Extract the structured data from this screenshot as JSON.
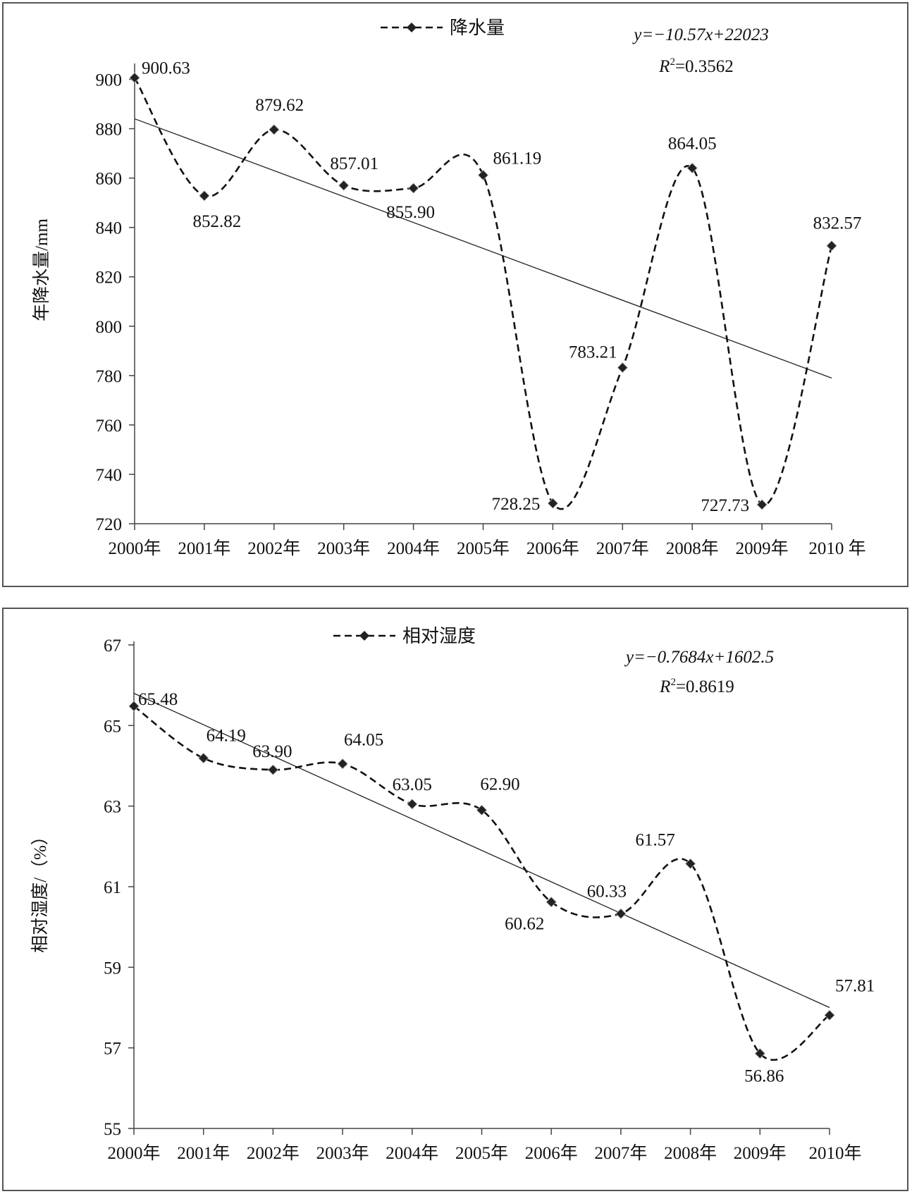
{
  "chart_data": [
    {
      "type": "line",
      "legend": "降水量",
      "ylabel": "年降水量/mm",
      "xlabel": "",
      "categories": [
        "2000年",
        "2001年",
        "2002年",
        "2003年",
        "2004年",
        "2005年",
        "2006年",
        "2007年",
        "2008年",
        "2009年",
        "2010 年"
      ],
      "ylim": [
        720,
        900
      ],
      "ymax_plot": 905,
      "yticks": [
        720,
        740,
        760,
        780,
        800,
        820,
        840,
        860,
        880,
        900
      ],
      "series": [
        {
          "name": "降水量",
          "values": [
            900.63,
            852.82,
            879.62,
            857.01,
            855.9,
            861.19,
            728.25,
            783.21,
            864.05,
            727.73,
            832.57
          ],
          "labels": [
            "900.63",
            "852.82",
            "879.62",
            "857.01",
            "855.90",
            "861.19",
            "728.25",
            "783.21",
            "864.05",
            "727.73",
            "832.57"
          ],
          "style": "dashed",
          "color": "#111111"
        }
      ],
      "trendline": {
        "x_start": 2000,
        "x_end": 2010,
        "slope": -10.57,
        "intercept": 22023,
        "y_start": 884,
        "y_end": 779
      },
      "equation": "y=−10.57x+22023",
      "r2_label": "R",
      "r2_value": "=0.3562",
      "legend_position": "top-center",
      "grid": false
    },
    {
      "type": "line",
      "legend": "相对湿度",
      "ylabel": "相对湿度/（%）",
      "xlabel": "",
      "categories": [
        "2000年",
        "2001年",
        "2002年",
        "2003年",
        "2004年",
        "2005年",
        "2006年",
        "2007年",
        "2008年",
        "2009年",
        "2010年"
      ],
      "ylim": [
        55,
        67
      ],
      "yticks": [
        55,
        57,
        59,
        61,
        63,
        65,
        67
      ],
      "series": [
        {
          "name": "相对湿度",
          "values": [
            65.48,
            64.19,
            63.9,
            64.05,
            63.05,
            62.9,
            60.62,
            60.33,
            61.57,
            56.86,
            57.81
          ],
          "labels": [
            "65.48",
            "64.19",
            "63.90",
            "64.05",
            "63.05",
            "62.90",
            "60.62",
            "60.33",
            "61.57",
            "56.86",
            "57.81"
          ],
          "style": "dashed",
          "color": "#111111"
        }
      ],
      "trendline": {
        "x_start": 2000,
        "x_end": 2010,
        "slope": -0.7684,
        "intercept": 1602.5,
        "y_start": 65.8,
        "y_end": 58.0
      },
      "equation": "y=−0.7684x+1602.5",
      "r2_label": "R",
      "r2_value": "=0.8619",
      "legend_position": "top-center",
      "grid": false
    }
  ]
}
